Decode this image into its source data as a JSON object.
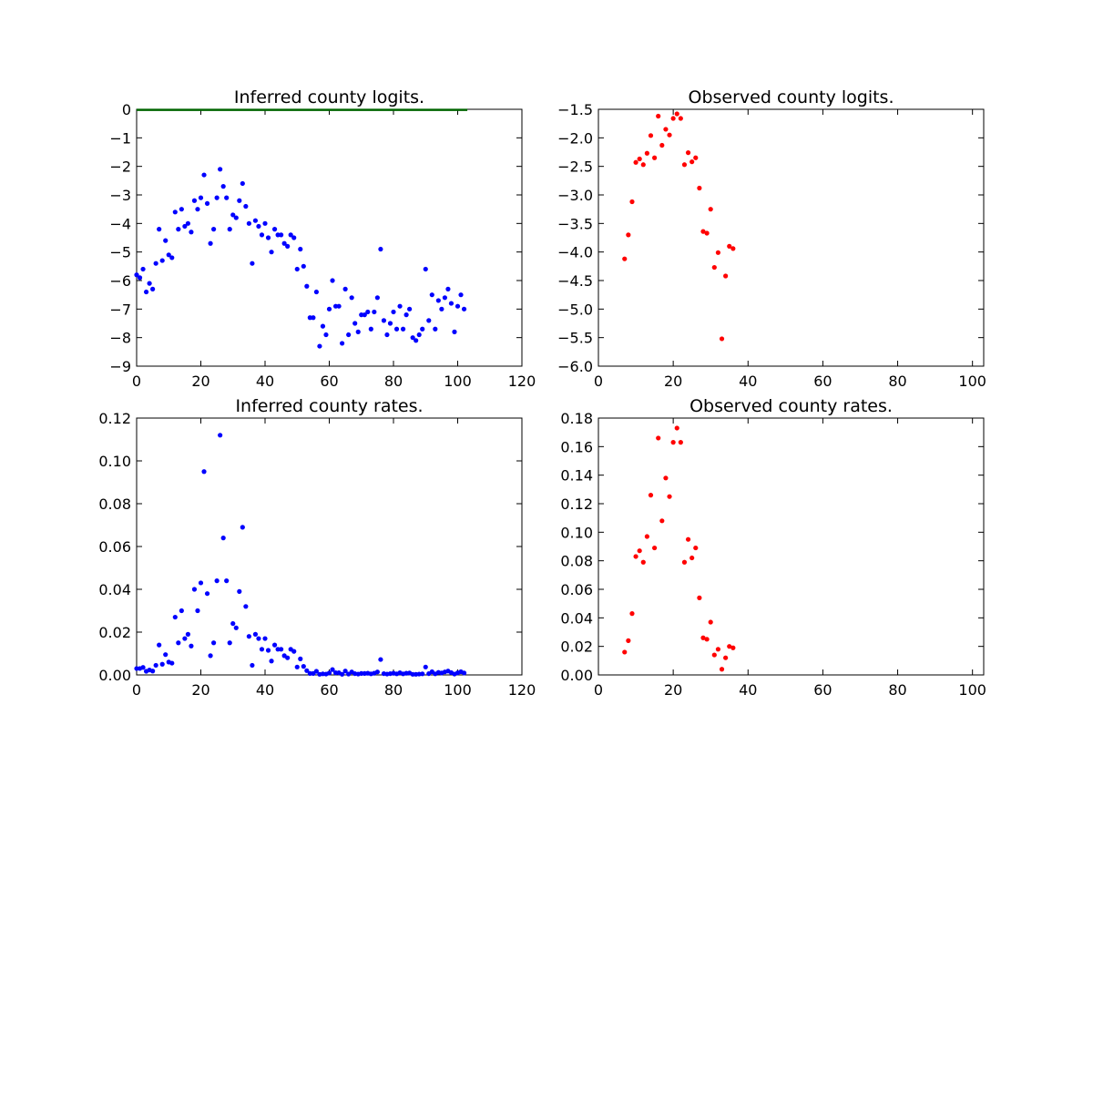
{
  "chart_data": [
    {
      "id": "inferred-logits",
      "type": "scatter",
      "title": "Inferred county logits.",
      "xlabel": "",
      "ylabel": "",
      "xlim": [
        0,
        120
      ],
      "ylim": [
        -9,
        0
      ],
      "xticks": [
        0,
        20,
        40,
        60,
        80,
        100,
        120
      ],
      "yticks": [
        -9,
        -8,
        -7,
        -6,
        -5,
        -4,
        -3,
        -2,
        -1,
        0
      ],
      "ytick_decimals": 0,
      "grid": false,
      "series": [
        {
          "color": "#0000ff",
          "marker": "dot",
          "x": [
            0,
            1,
            2,
            3,
            4,
            5,
            6,
            7,
            8,
            9,
            10,
            11,
            12,
            13,
            14,
            15,
            16,
            17,
            18,
            19,
            20,
            21,
            22,
            23,
            24,
            25,
            26,
            27,
            28,
            29,
            30,
            31,
            32,
            33,
            34,
            35,
            36,
            37,
            38,
            39,
            40,
            41,
            42,
            43,
            44,
            45,
            46,
            47,
            48,
            49,
            50,
            51,
            52,
            53,
            54,
            55,
            56,
            57,
            58,
            59,
            60,
            61,
            62,
            63,
            64,
            65,
            66,
            67,
            68,
            69,
            70,
            71,
            72,
            73,
            74,
            75,
            76,
            77,
            78,
            79,
            80,
            81,
            82,
            83,
            84,
            85,
            86,
            87,
            88,
            89,
            90,
            91,
            92,
            93,
            94,
            95,
            96,
            97,
            98,
            99,
            100,
            101,
            102
          ],
          "y": [
            -5.8,
            -5.9,
            -5.6,
            -6.4,
            -6.1,
            -6.3,
            -5.4,
            -4.2,
            -5.3,
            -4.6,
            -5.1,
            -5.2,
            -3.6,
            -4.2,
            -3.5,
            -4.1,
            -4.0,
            -4.3,
            -3.2,
            -3.5,
            -3.1,
            -2.3,
            -3.3,
            -4.7,
            -4.2,
            -3.1,
            -2.1,
            -2.7,
            -3.1,
            -4.2,
            -3.7,
            -3.8,
            -3.2,
            -2.6,
            -3.4,
            -4.0,
            -5.4,
            -3.9,
            -4.1,
            -4.4,
            -4.0,
            -4.5,
            -5.0,
            -4.2,
            -4.4,
            -4.4,
            -4.7,
            -4.8,
            -4.4,
            -4.5,
            -5.6,
            -4.9,
            -5.5,
            -6.2,
            -7.3,
            -7.3,
            -6.4,
            -8.3,
            -7.6,
            -7.9,
            -7.0,
            -6.0,
            -6.9,
            -6.9,
            -8.2,
            -6.3,
            -7.9,
            -6.6,
            -7.5,
            -7.8,
            -7.2,
            -7.2,
            -7.1,
            -7.7,
            -7.1,
            -6.6,
            -4.9,
            -7.4,
            -7.9,
            -7.5,
            -7.1,
            -7.7,
            -6.9,
            -7.7,
            -7.2,
            -7.0,
            -8.0,
            -8.1,
            -7.9,
            -7.7,
            -5.6,
            -7.4,
            -6.5,
            -7.7,
            -6.7,
            -7.0,
            -6.6,
            -6.3,
            -6.8,
            -7.8,
            -6.9,
            -6.5,
            -7.0
          ]
        },
        {
          "color": "#006400",
          "marker": "line",
          "x": [
            0,
            103
          ],
          "y": [
            -0.02,
            -0.02
          ]
        }
      ]
    },
    {
      "id": "observed-logits",
      "type": "scatter",
      "title": "Observed county logits.",
      "xlabel": "",
      "ylabel": "",
      "xlim": [
        0,
        103
      ],
      "ylim": [
        -6.0,
        -1.5
      ],
      "xticks": [
        0,
        20,
        40,
        60,
        80,
        100
      ],
      "yticks": [
        -6.0,
        -5.5,
        -5.0,
        -4.5,
        -4.0,
        -3.5,
        -3.0,
        -2.5,
        -2.0,
        -1.5
      ],
      "ytick_decimals": 1,
      "grid": false,
      "series": [
        {
          "color": "#ff0000",
          "marker": "dot",
          "x": [
            7,
            8,
            9,
            10,
            11,
            12,
            13,
            14,
            15,
            16,
            17,
            18,
            19,
            20,
            21,
            22,
            23,
            24,
            25,
            26,
            27,
            28,
            29,
            30,
            31,
            32,
            33,
            34,
            35,
            36
          ],
          "y": [
            -4.12,
            -3.7,
            -3.12,
            -2.43,
            -2.37,
            -2.47,
            -2.27,
            -1.96,
            -2.35,
            -1.62,
            -2.13,
            -1.85,
            -1.95,
            -1.66,
            -1.58,
            -1.66,
            -2.47,
            -2.26,
            -2.42,
            -2.35,
            -2.88,
            -3.64,
            -3.67,
            -3.25,
            -4.27,
            -4.01,
            -5.52,
            -4.42,
            -3.9,
            -3.94
          ]
        }
      ]
    },
    {
      "id": "inferred-rates",
      "type": "scatter",
      "title": "Inferred county rates.",
      "xlabel": "",
      "ylabel": "",
      "xlim": [
        0,
        120
      ],
      "ylim": [
        0,
        0.12
      ],
      "xticks": [
        0,
        20,
        40,
        60,
        80,
        100,
        120
      ],
      "yticks": [
        0.0,
        0.02,
        0.04,
        0.06,
        0.08,
        0.1,
        0.12
      ],
      "ytick_decimals": 2,
      "grid": false,
      "series": [
        {
          "color": "#0000ff",
          "marker": "dot",
          "x": [
            0,
            1,
            2,
            3,
            4,
            5,
            6,
            7,
            8,
            9,
            10,
            11,
            12,
            13,
            14,
            15,
            16,
            17,
            18,
            19,
            20,
            21,
            22,
            23,
            24,
            25,
            26,
            27,
            28,
            29,
            30,
            31,
            32,
            33,
            34,
            35,
            36,
            37,
            38,
            39,
            40,
            41,
            42,
            43,
            44,
            45,
            46,
            47,
            48,
            49,
            50,
            51,
            52,
            53,
            54,
            55,
            56,
            57,
            58,
            59,
            60,
            61,
            62,
            63,
            64,
            65,
            66,
            67,
            68,
            69,
            70,
            71,
            72,
            73,
            74,
            75,
            76,
            77,
            78,
            79,
            80,
            81,
            82,
            83,
            84,
            85,
            86,
            87,
            88,
            89,
            90,
            91,
            92,
            93,
            94,
            95,
            96,
            97,
            98,
            99,
            100,
            101,
            102
          ],
          "y": [
            0.003,
            0.003,
            0.0035,
            0.0017,
            0.0023,
            0.0018,
            0.0045,
            0.014,
            0.005,
            0.0095,
            0.006,
            0.0055,
            0.027,
            0.015,
            0.03,
            0.017,
            0.019,
            0.0135,
            0.04,
            0.03,
            0.043,
            0.095,
            0.038,
            0.009,
            0.015,
            0.044,
            0.112,
            0.064,
            0.044,
            0.015,
            0.024,
            0.022,
            0.039,
            0.069,
            0.032,
            0.018,
            0.0045,
            0.019,
            0.017,
            0.012,
            0.017,
            0.0115,
            0.0065,
            0.014,
            0.012,
            0.012,
            0.009,
            0.008,
            0.012,
            0.011,
            0.0037,
            0.0075,
            0.004,
            0.002,
            0.0007,
            0.0007,
            0.0017,
            0.0003,
            0.0005,
            0.0004,
            0.0009,
            0.0025,
            0.001,
            0.001,
            0.0003,
            0.0018,
            0.0004,
            0.0014,
            0.0006,
            0.0004,
            0.0007,
            0.0007,
            0.0008,
            0.0005,
            0.0008,
            0.0014,
            0.0072,
            0.0006,
            0.0004,
            0.0006,
            0.0008,
            0.0005,
            0.001,
            0.0005,
            0.0008,
            0.0009,
            0.0003,
            0.0003,
            0.0004,
            0.0005,
            0.0037,
            0.0006,
            0.0015,
            0.0005,
            0.0012,
            0.0009,
            0.0014,
            0.0018,
            0.0011,
            0.0004,
            0.001,
            0.0015,
            0.0009
          ]
        }
      ]
    },
    {
      "id": "observed-rates",
      "type": "scatter",
      "title": "Observed county rates.",
      "xlabel": "",
      "ylabel": "",
      "xlim": [
        0,
        103
      ],
      "ylim": [
        0,
        0.18
      ],
      "xticks": [
        0,
        20,
        40,
        60,
        80,
        100
      ],
      "yticks": [
        0.0,
        0.02,
        0.04,
        0.06,
        0.08,
        0.1,
        0.12,
        0.14,
        0.16,
        0.18
      ],
      "ytick_decimals": 2,
      "grid": false,
      "series": [
        {
          "color": "#ff0000",
          "marker": "dot",
          "x": [
            7,
            8,
            9,
            10,
            11,
            12,
            13,
            14,
            15,
            16,
            17,
            18,
            19,
            20,
            21,
            22,
            23,
            24,
            25,
            26,
            27,
            28,
            29,
            30,
            31,
            32,
            33,
            34,
            35,
            36
          ],
          "y": [
            0.016,
            0.024,
            0.043,
            0.083,
            0.087,
            0.079,
            0.097,
            0.126,
            0.089,
            0.166,
            0.108,
            0.138,
            0.125,
            0.163,
            0.173,
            0.163,
            0.079,
            0.095,
            0.082,
            0.089,
            0.054,
            0.026,
            0.025,
            0.037,
            0.014,
            0.018,
            0.004,
            0.012,
            0.02,
            0.019
          ]
        }
      ]
    }
  ]
}
